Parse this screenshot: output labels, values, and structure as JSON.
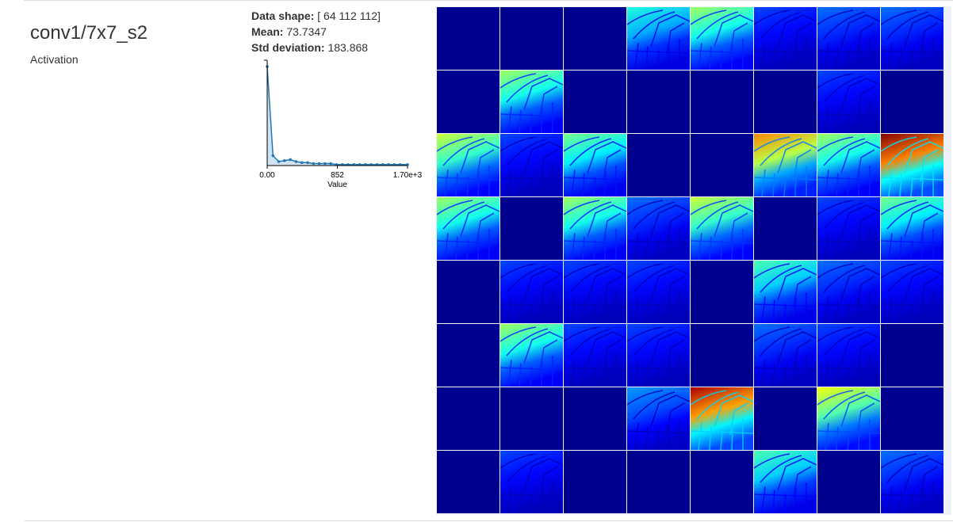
{
  "layer": {
    "name": "conv1/7x7_s2",
    "type": "Activation"
  },
  "stats": {
    "shape_label": "Data shape:",
    "shape_value": "[ 64 112 112]",
    "mean_label": "Mean:",
    "mean_value": "73.7347",
    "std_label": "Std deviation:",
    "std_value": "183.868"
  },
  "chart_data": {
    "type": "area",
    "xlabel": "Value",
    "ylabel": "",
    "title": "",
    "x_ticks": [
      "0.00",
      "852",
      "1.70e+3"
    ],
    "x": [
      0,
      70,
      140,
      210,
      280,
      350,
      420,
      490,
      560,
      630,
      700,
      770,
      840,
      910,
      980,
      1050,
      1120,
      1190,
      1260,
      1330,
      1400,
      1470,
      1540,
      1610,
      1700
    ],
    "values": [
      1.0,
      0.1,
      0.04,
      0.05,
      0.06,
      0.04,
      0.03,
      0.03,
      0.02,
      0.02,
      0.02,
      0.02,
      0.01,
      0.01,
      0.01,
      0.01,
      0.01,
      0.01,
      0.01,
      0.01,
      0.01,
      0.01,
      0.01,
      0.01,
      0.01
    ],
    "xlim": [
      0,
      1700
    ],
    "ylim": [
      0,
      1
    ],
    "grid": false,
    "colors": {
      "line": "#1f77b4",
      "fill": "#c6dbef"
    }
  },
  "activation_grid": {
    "rows": 8,
    "columns": 8,
    "colors": {
      "background": "#00008f",
      "separator": "#eef1f7"
    },
    "intensity": [
      [
        0.0,
        0.0,
        0.0,
        0.3,
        0.45,
        0.05,
        0.1,
        0.1
      ],
      [
        0.0,
        0.45,
        0.0,
        0.0,
        0.0,
        0.0,
        0.05,
        0.0
      ],
      [
        0.5,
        0.05,
        0.4,
        0.0,
        0.0,
        0.7,
        0.45,
        1.0
      ],
      [
        0.45,
        0.0,
        0.45,
        0.1,
        0.5,
        0.0,
        0.05,
        0.4
      ],
      [
        0.0,
        0.05,
        0.05,
        0.05,
        0.0,
        0.35,
        0.1,
        0.05
      ],
      [
        0.0,
        0.45,
        0.05,
        0.05,
        0.0,
        0.1,
        0.05,
        0.0
      ],
      [
        0.0,
        0.0,
        0.0,
        0.15,
        0.95,
        0.0,
        0.55,
        0.0
      ],
      [
        0.0,
        0.05,
        0.0,
        0.0,
        0.0,
        0.35,
        0.0,
        0.1
      ]
    ]
  }
}
